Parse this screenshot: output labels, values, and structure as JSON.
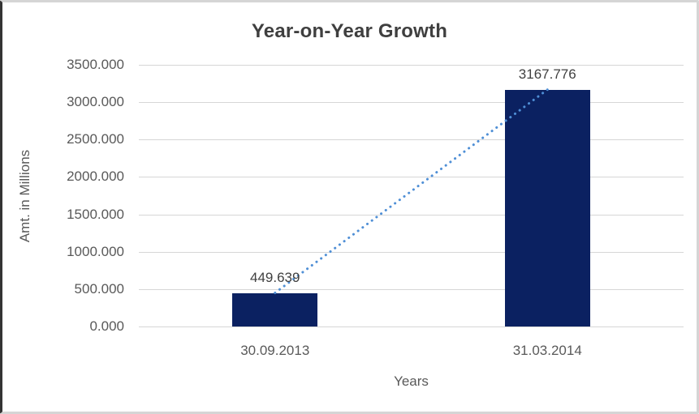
{
  "chart": {
    "title": "Year-on-Year Growth",
    "xlabel": "Years",
    "ylabel": "Amt. in Millions"
  },
  "chart_data": {
    "type": "bar",
    "title": "Year-on-Year Growth",
    "xlabel": "Years",
    "ylabel": "Amt. in Millions",
    "categories": [
      "30.09.2013",
      "31.03.2014"
    ],
    "values": [
      449.639,
      3167.776
    ],
    "data_labels": [
      "449.639",
      "3167.776"
    ],
    "ylim": [
      0,
      3500
    ],
    "y_tick_values": [
      0,
      500,
      1000,
      1500,
      2000,
      2500,
      3000,
      3500
    ],
    "y_tick_labels": [
      "0.000",
      "500.000",
      "1000.000",
      "1500.000",
      "2000.000",
      "2500.000",
      "3000.000",
      "3500.000"
    ],
    "grid": true,
    "legend": "none",
    "series": [
      {
        "name": "Amt. in Millions",
        "values": [
          449.639,
          3167.776
        ]
      }
    ],
    "trendline": {
      "style": "dotted",
      "connects": "bar-tops",
      "from": {
        "category": "30.09.2013",
        "value": 449.639
      },
      "to": {
        "category": "31.03.2014",
        "value": 3167.776
      }
    },
    "colors": {
      "bar": "#0b2161",
      "trendline": "#4f8fd6",
      "gridline": "#d6d6d6",
      "title_text": "#3f3f3f",
      "axis_text": "#595959",
      "data_label_text": "#404040",
      "background": "#ffffff",
      "frame_border_left": "#343434",
      "frame_border": "#d5d5d5"
    }
  }
}
